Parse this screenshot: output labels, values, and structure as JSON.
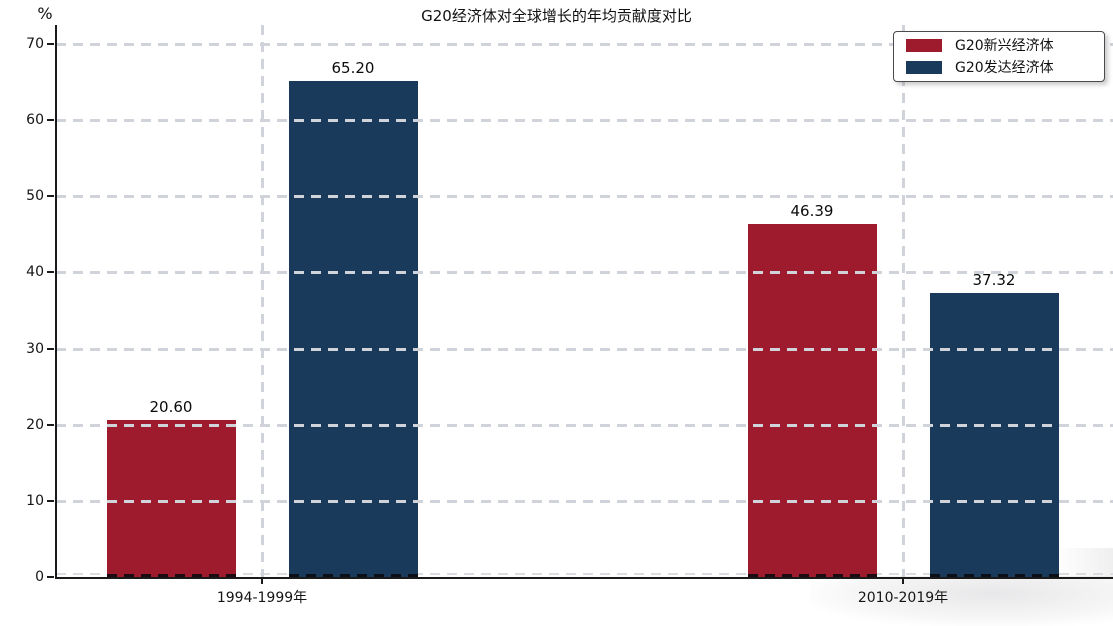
{
  "chart_data": {
    "type": "bar",
    "title": "G20经济体对全球增长的年均贡献度对比",
    "ylabel": "%",
    "xlabel": "",
    "categories": [
      "1994-1999年",
      "2010-2019年"
    ],
    "series": [
      {
        "name": "G20新兴经济体",
        "color": "#9e1b2e",
        "values": [
          20.6,
          46.39
        ]
      },
      {
        "name": "G20发达经济体",
        "color": "#1a3a5c",
        "values": [
          65.2,
          37.32
        ]
      }
    ],
    "data_labels": [
      [
        "20.60",
        "46.39"
      ],
      [
        "65.20",
        "37.32"
      ]
    ],
    "y_ticks": [
      0,
      10,
      20,
      30,
      40,
      50,
      60,
      70
    ],
    "ylim": [
      0,
      72.5
    ],
    "grid": "dashed horizontal lines at every 10, dashed vertical lines at category centers, drawn over bars",
    "grid_color": "#d0d4da",
    "legend_position": "upper right",
    "legend_labels": [
      "G20新兴经济体",
      "G20发达经济体"
    ]
  }
}
